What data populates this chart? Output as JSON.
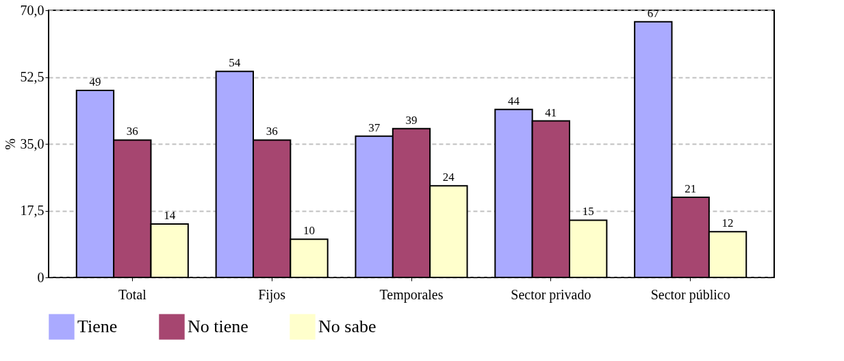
{
  "chart_data": {
    "type": "bar",
    "ylabel": "%",
    "categories": [
      "Total",
      "Fijos",
      "Temporales",
      "Sector privado",
      "Sector público"
    ],
    "series": [
      {
        "name": "Tiene",
        "color": "#aaaaff",
        "values": [
          49,
          54,
          37,
          44,
          67
        ]
      },
      {
        "name": "No tiene",
        "color": "#a64670",
        "values": [
          36,
          36,
          39,
          41,
          21
        ]
      },
      {
        "name": "No sabe",
        "color": "#ffffcc",
        "values": [
          14,
          10,
          24,
          15,
          12
        ]
      }
    ],
    "ylim": [
      0,
      70
    ],
    "yticks": [
      0,
      {
        "value": 17.5,
        "label": "17,5"
      },
      {
        "value": 35,
        "label": "35,0"
      },
      {
        "value": 52.5,
        "label": "52,5"
      },
      {
        "value": 70,
        "label": "70,0"
      }
    ],
    "grid": "y",
    "legend": "bottom",
    "data_labels": true
  }
}
